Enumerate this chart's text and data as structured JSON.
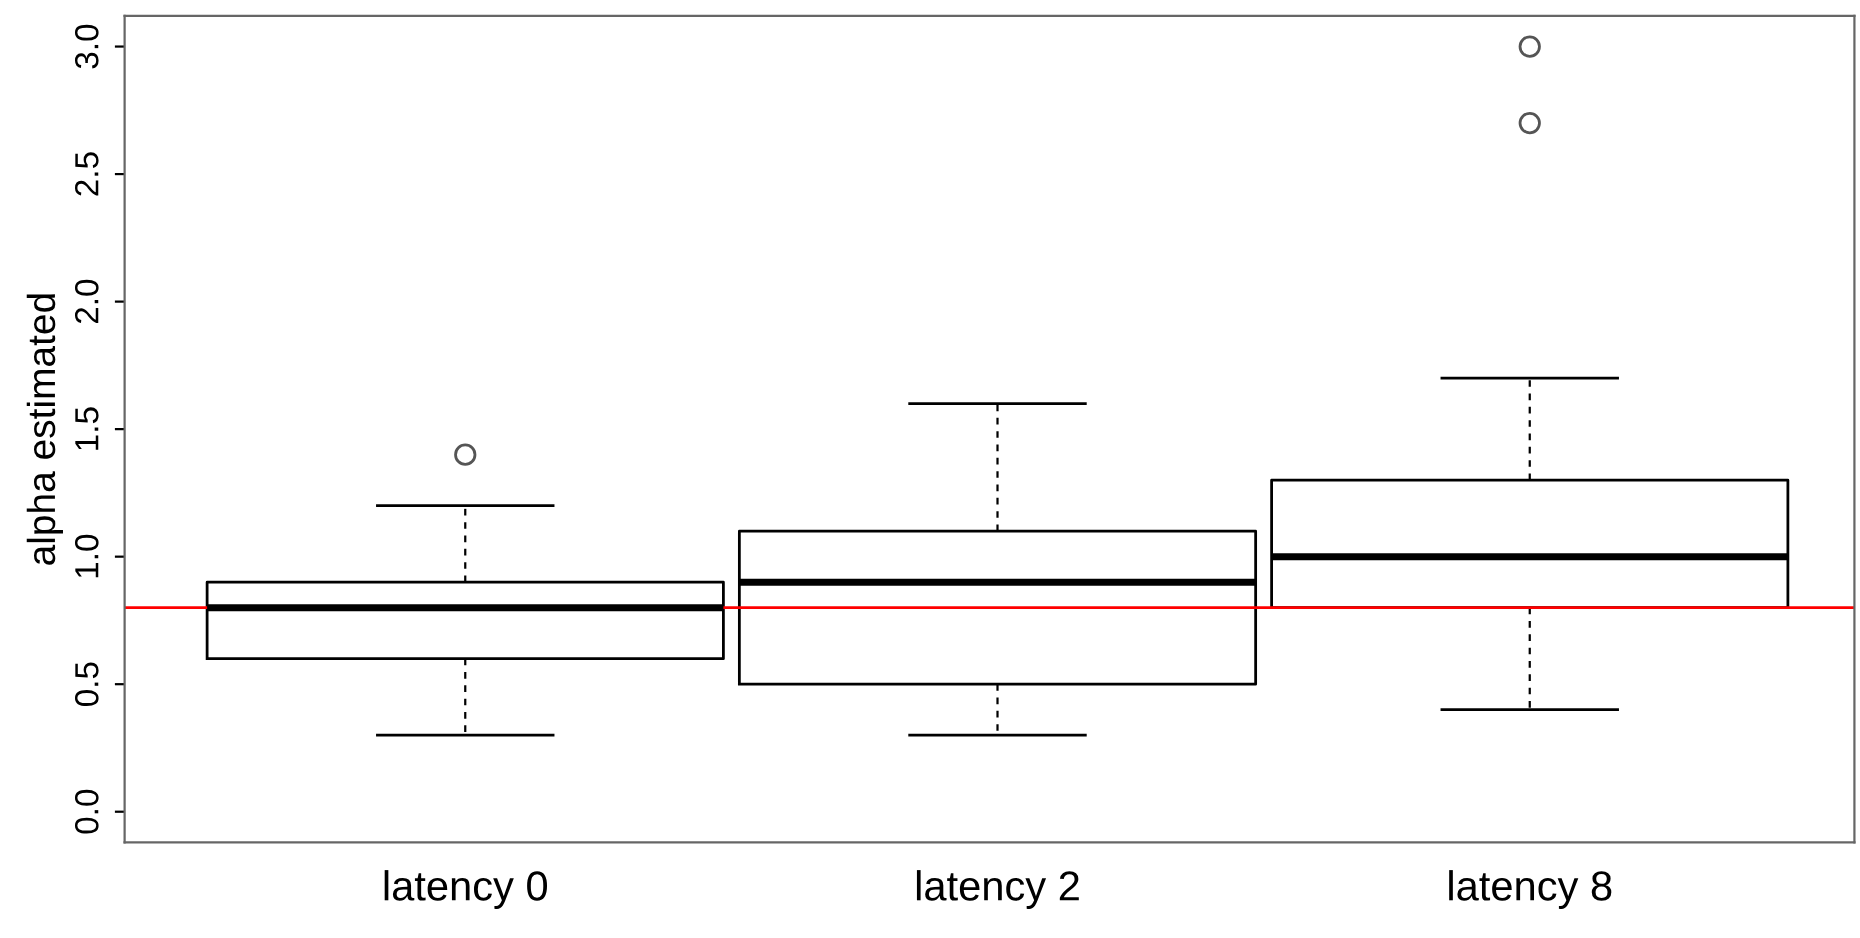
{
  "chart_data": {
    "type": "box",
    "ylabel": "alpha estimated",
    "categories": [
      "latency 0",
      "latency 2",
      "latency 8"
    ],
    "boxes": [
      {
        "low": 0.3,
        "q1": 0.6,
        "median": 0.8,
        "q3": 0.9,
        "high": 1.2,
        "outliers": [
          1.4
        ]
      },
      {
        "low": 0.3,
        "q1": 0.5,
        "median": 0.9,
        "q3": 1.1,
        "high": 1.6
      },
      {
        "low": 0.4,
        "q1": 0.8,
        "median": 1.0,
        "q3": 1.3,
        "high": 1.7,
        "outliers": [
          2.7,
          3.0
        ]
      }
    ],
    "ylim": [
      -0.12,
      3.12
    ],
    "yticks": [
      {
        "value": 0,
        "label": "0.0"
      },
      {
        "value": 0.5,
        "label": "0.5"
      },
      {
        "value": 1,
        "label": "1.0"
      },
      {
        "value": 1.5,
        "label": "1.5"
      },
      {
        "value": 2,
        "label": "2.0"
      },
      {
        "value": 2.5,
        "label": "2.5"
      },
      {
        "value": 3,
        "label": "3.0"
      }
    ],
    "ref_lines": [
      {
        "axis": "y",
        "value": 0.8,
        "color": "#ff0000",
        "line_style": "solid"
      }
    ],
    "grid": false,
    "legend": false
  }
}
